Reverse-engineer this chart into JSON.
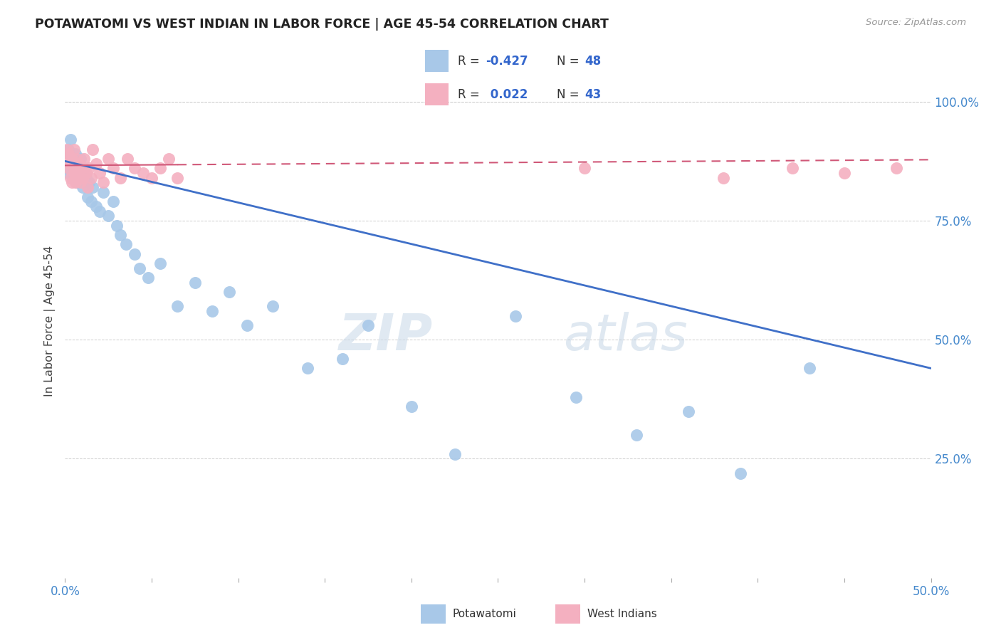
{
  "title": "POTAWATOMI VS WEST INDIAN IN LABOR FORCE | AGE 45-54 CORRELATION CHART",
  "source": "Source: ZipAtlas.com",
  "ylabel": "In Labor Force | Age 45-54",
  "xlim": [
    0.0,
    0.5
  ],
  "ylim": [
    0.0,
    1.08
  ],
  "watermark_zip": "ZIP",
  "watermark_atlas": "atlas",
  "blue_color": "#a8c8e8",
  "pink_color": "#f4b0c0",
  "blue_line_color": "#4070c8",
  "pink_line_color": "#d05878",
  "grid_color": "#c8c8c8",
  "potawatomi_x": [
    0.001,
    0.002,
    0.002,
    0.003,
    0.004,
    0.005,
    0.005,
    0.006,
    0.007,
    0.007,
    0.008,
    0.009,
    0.01,
    0.011,
    0.012,
    0.013,
    0.014,
    0.015,
    0.016,
    0.018,
    0.02,
    0.022,
    0.025,
    0.028,
    0.03,
    0.032,
    0.035,
    0.04,
    0.043,
    0.048,
    0.055,
    0.065,
    0.075,
    0.085,
    0.095,
    0.105,
    0.12,
    0.14,
    0.16,
    0.175,
    0.2,
    0.225,
    0.26,
    0.295,
    0.33,
    0.36,
    0.39,
    0.43
  ],
  "potawatomi_y": [
    0.86,
    0.9,
    0.85,
    0.92,
    0.88,
    0.86,
    0.84,
    0.89,
    0.83,
    0.87,
    0.85,
    0.88,
    0.82,
    0.86,
    0.84,
    0.8,
    0.83,
    0.79,
    0.82,
    0.78,
    0.77,
    0.81,
    0.76,
    0.79,
    0.74,
    0.72,
    0.7,
    0.68,
    0.65,
    0.63,
    0.66,
    0.57,
    0.62,
    0.56,
    0.6,
    0.53,
    0.57,
    0.44,
    0.46,
    0.53,
    0.36,
    0.26,
    0.55,
    0.38,
    0.3,
    0.35,
    0.22,
    0.44
  ],
  "west_indian_x": [
    0.001,
    0.001,
    0.002,
    0.002,
    0.003,
    0.003,
    0.004,
    0.004,
    0.005,
    0.005,
    0.006,
    0.006,
    0.007,
    0.007,
    0.008,
    0.008,
    0.009,
    0.009,
    0.01,
    0.011,
    0.012,
    0.013,
    0.014,
    0.015,
    0.016,
    0.018,
    0.02,
    0.022,
    0.025,
    0.028,
    0.032,
    0.036,
    0.04,
    0.045,
    0.05,
    0.055,
    0.06,
    0.065,
    0.3,
    0.38,
    0.42,
    0.45,
    0.48
  ],
  "west_indian_y": [
    0.88,
    0.9,
    0.86,
    0.89,
    0.84,
    0.87,
    0.83,
    0.88,
    0.85,
    0.9,
    0.83,
    0.86,
    0.84,
    0.88,
    0.85,
    0.87,
    0.83,
    0.86,
    0.84,
    0.88,
    0.85,
    0.82,
    0.86,
    0.84,
    0.9,
    0.87,
    0.85,
    0.83,
    0.88,
    0.86,
    0.84,
    0.88,
    0.86,
    0.85,
    0.84,
    0.86,
    0.88,
    0.84,
    0.86,
    0.84,
    0.86,
    0.85,
    0.86
  ]
}
